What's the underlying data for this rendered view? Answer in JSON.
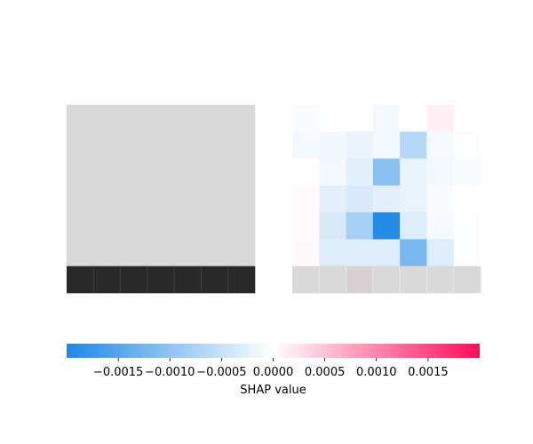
{
  "chart_data": [
    {
      "type": "heatmap",
      "name": "input image",
      "rows": 7,
      "cols": 7,
      "image": [
        [
          0.85,
          0.85,
          0.85,
          0.85,
          0.85,
          0.85,
          0.85
        ],
        [
          0.85,
          0.85,
          0.85,
          0.85,
          0.85,
          0.85,
          0.85
        ],
        [
          0.85,
          0.85,
          0.85,
          0.85,
          0.85,
          0.85,
          0.85
        ],
        [
          0.85,
          0.85,
          0.85,
          0.85,
          0.85,
          0.85,
          0.85
        ],
        [
          0.85,
          0.85,
          0.85,
          0.85,
          0.85,
          0.85,
          0.85
        ],
        [
          0.85,
          0.85,
          0.85,
          0.85,
          0.85,
          0.85,
          0.85
        ],
        [
          0.16,
          0.16,
          0.16,
          0.16,
          0.16,
          0.16,
          0.16
        ]
      ],
      "colormap": "gray"
    },
    {
      "type": "heatmap",
      "name": "SHAP values overlay",
      "rows": 7,
      "cols": 7,
      "values": [
        [
          -5e-05,
          0.0,
          0.0,
          -0.0001,
          0.0,
          0.00012,
          0.0
        ],
        [
          -0.0001,
          -0.00012,
          -0.00018,
          -0.0001,
          -0.00065,
          -8e-05,
          -3e-05
        ],
        [
          0.0,
          -0.0001,
          -0.00025,
          -0.00105,
          -0.0002,
          -0.0001,
          -5e-05
        ],
        [
          3e-05,
          -0.00025,
          -0.00035,
          -0.00025,
          -0.0002,
          -5e-05,
          0.0
        ],
        [
          3e-05,
          -0.00035,
          -0.0008,
          -0.00195,
          -0.0003,
          -8e-05,
          -4e-05
        ],
        [
          5e-05,
          -0.0003,
          -0.0003,
          -0.0003,
          -0.0012,
          -0.0003,
          -3e-05
        ],
        [
          0.0,
          0.0,
          0.0,
          0.0,
          0.0,
          0.0,
          0.0
        ]
      ],
      "background_row_colors": [
        "#d9d9d9",
        "#d9d9d9",
        "#d9d0d2",
        "#d9d9d9",
        "#d9d9d9",
        "#d9d9d9",
        "#d9d9d9"
      ],
      "vmin": -0.002,
      "vmax": 0.002,
      "colormap": "red_transparent_blue"
    }
  ],
  "colorbar": {
    "label": "SHAP value",
    "vmin": -0.002,
    "vmax": 0.002,
    "ticks": [
      -0.0015,
      -0.001,
      -0.0005,
      0.0,
      0.0005,
      0.001,
      0.0015
    ],
    "tick_labels": [
      "−0.0015",
      "−0.0010",
      "−0.0005",
      "0.0000",
      "0.0005",
      "0.0010",
      "0.0015"
    ],
    "color_negative": "#1e88e5",
    "color_zero": "#ffffff",
    "color_positive": "#ff0d57"
  }
}
